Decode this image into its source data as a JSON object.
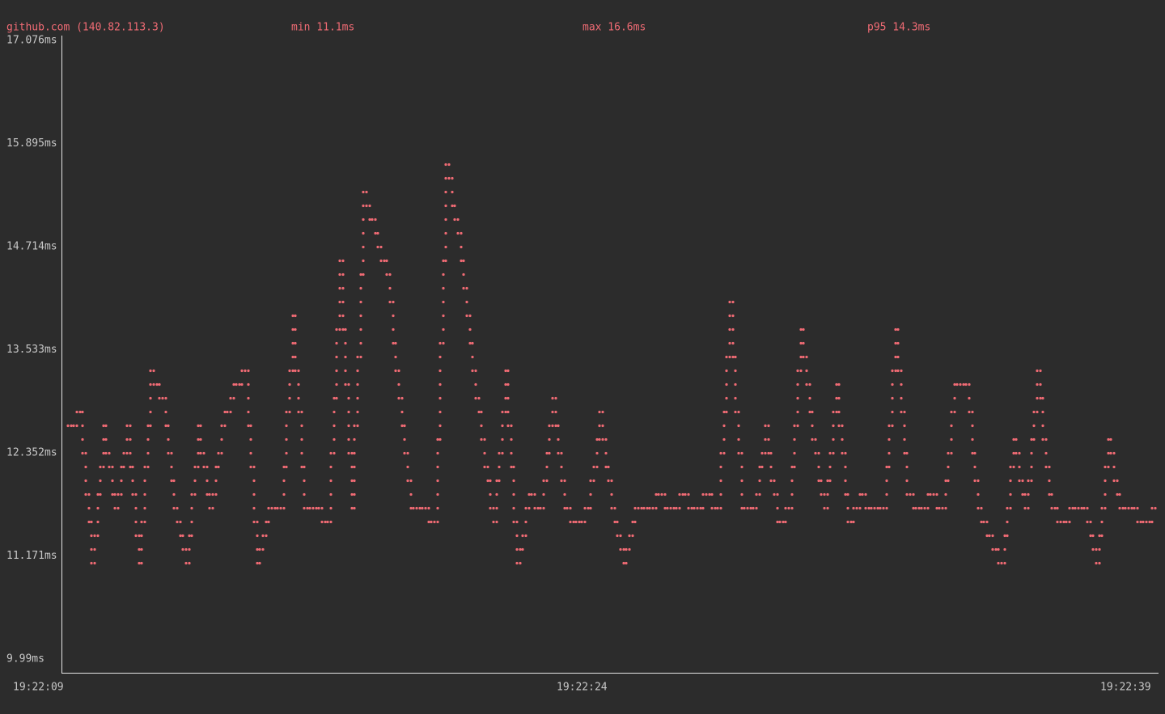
{
  "chart_data": {
    "type": "line",
    "series": [
      {
        "name": "github.com (140.82.113.3)",
        "color": "#f06b74",
        "values": [
          12.66,
          12.81,
          11.08,
          12.66,
          11.71,
          12.66,
          11.08,
          13.29,
          12.97,
          11.71,
          11.08,
          12.66,
          11.71,
          12.66,
          13.13,
          13.29,
          11.08,
          11.71,
          11.71,
          13.92,
          11.71,
          11.71,
          11.55,
          14.55,
          11.71,
          15.33,
          14.85,
          14.39,
          13.0,
          11.71,
          11.71,
          11.55,
          15.65,
          14.85,
          13.6,
          12.5,
          11.55,
          13.29,
          11.08,
          11.87,
          11.71,
          12.97,
          11.71,
          11.55,
          11.71,
          12.81,
          11.71,
          11.08,
          11.71,
          11.71,
          11.87,
          11.71,
          11.87,
          11.71,
          11.87,
          11.71,
          14.07,
          11.71,
          11.71,
          12.66,
          11.55,
          11.71,
          13.76,
          12.5,
          11.71,
          13.13,
          11.55,
          11.87,
          11.71,
          11.71,
          13.76,
          11.87,
          11.71,
          11.87,
          11.71,
          13.13,
          13.13,
          11.71,
          11.39,
          11.08,
          12.5,
          11.71,
          13.29,
          11.87,
          11.55,
          11.71,
          11.71,
          11.08,
          12.5,
          11.71,
          11.71,
          11.55,
          11.71
        ]
      }
    ],
    "stats": [
      "min 11.1ms",
      "max 16.6ms",
      "p95 14.3ms"
    ],
    "ylim": [
      9.99,
      17.076
    ],
    "yticks": [
      {
        "value": 9.99,
        "label": "9.99ms"
      },
      {
        "value": 11.171,
        "label": "11.171ms"
      },
      {
        "value": 12.352,
        "label": "12.352ms"
      },
      {
        "value": 13.533,
        "label": "13.533ms"
      },
      {
        "value": 14.714,
        "label": "14.714ms"
      },
      {
        "value": 15.895,
        "label": "15.895ms"
      },
      {
        "value": 17.076,
        "label": "17.076ms"
      }
    ],
    "xticks": [
      "19:22:09",
      "19:22:24",
      "19:22:39"
    ]
  }
}
